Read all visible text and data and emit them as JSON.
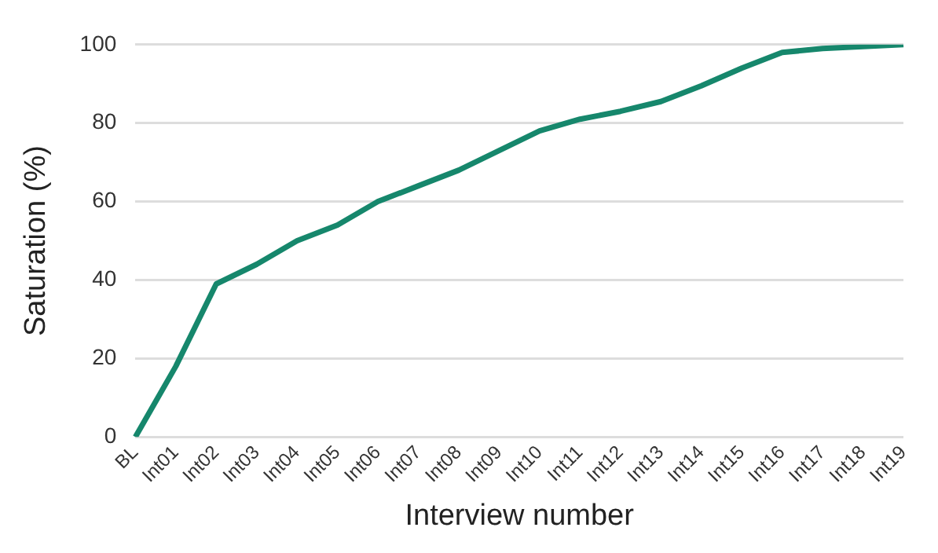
{
  "chart_data": {
    "type": "line",
    "xlabel": "Interview number",
    "ylabel": "Saturation (%)",
    "categories": [
      "BL",
      "Int01",
      "Int02",
      "Int03",
      "Int04",
      "Int05",
      "Int06",
      "Int07",
      "Int08",
      "Int09",
      "Int10",
      "Int11",
      "Int12",
      "Int13",
      "Int14",
      "Int15",
      "Int16",
      "Int17",
      "Int18",
      "Int19"
    ],
    "series": [
      {
        "color": "#16876c",
        "values": [
          0,
          18,
          39,
          44,
          50,
          54,
          60,
          64,
          68,
          73,
          78,
          81,
          83,
          85.5,
          89.5,
          94,
          98,
          99,
          99.5,
          100
        ]
      }
    ],
    "ylim": [
      0,
      100
    ],
    "yticks": [
      0,
      20,
      40,
      60,
      80,
      100
    ],
    "grid": "y",
    "marker": "none"
  }
}
